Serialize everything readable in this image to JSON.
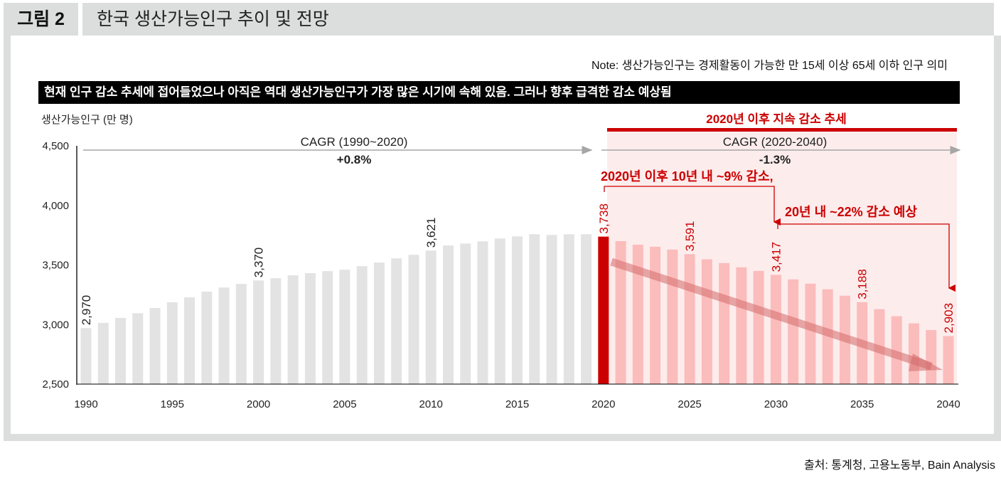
{
  "header": {
    "figure_label": "그림 2",
    "title": "한국 생산가능인구 추이 및 전망"
  },
  "note": "Note: 생산가능인구는 경제활동이 가능한 만 15세 이상 65세 이하 인구 의미",
  "banner": "현재 인구 감소 추세에 접어들었으나 아직은 역대 생산가능인구가 가장 많은 시기에 속해 있음. 그러나 향후 급격한 감소 예상됨",
  "source": "출처: 통계청, 고용노동부, Bain Analysis",
  "colors": {
    "historic": "#e3e3e3",
    "highlight": "#cc0000",
    "forecast": "#fbbcbc",
    "forecast_bg": "#fdecec",
    "annotation": "#cc0000"
  },
  "chart_data": {
    "type": "bar",
    "ylabel": "생산가능인구 (만 명)",
    "ylim": [
      2500,
      4500
    ],
    "yticks": [
      "2,500",
      "3,000",
      "3,500",
      "4,000",
      "4,500"
    ],
    "ytick_values": [
      2500,
      3000,
      3500,
      4000,
      4500
    ],
    "xticks": [
      "1990",
      "1995",
      "2000",
      "2005",
      "2010",
      "2015",
      "2020",
      "2025",
      "2030",
      "2035",
      "2040"
    ],
    "years": [
      1990,
      1991,
      1992,
      1993,
      1994,
      1995,
      1996,
      1997,
      1998,
      1999,
      2000,
      2001,
      2002,
      2003,
      2004,
      2005,
      2006,
      2007,
      2008,
      2009,
      2010,
      2011,
      2012,
      2013,
      2014,
      2015,
      2016,
      2017,
      2018,
      2019,
      2020,
      2021,
      2022,
      2023,
      2024,
      2025,
      2026,
      2027,
      2028,
      2029,
      2030,
      2031,
      2032,
      2033,
      2034,
      2035,
      2036,
      2037,
      2038,
      2039,
      2040
    ],
    "values": [
      2970,
      3014,
      3056,
      3095,
      3139,
      3187,
      3229,
      3276,
      3311,
      3341,
      3370,
      3389,
      3413,
      3431,
      3448,
      3460,
      3490,
      3520,
      3555,
      3585,
      3621,
      3663,
      3680,
      3698,
      3722,
      3740,
      3758,
      3752,
      3758,
      3758,
      3738,
      3700,
      3670,
      3653,
      3629,
      3591,
      3548,
      3516,
      3480,
      3450,
      3417,
      3379,
      3343,
      3296,
      3242,
      3188,
      3129,
      3070,
      3010,
      2954,
      2903
    ],
    "forecast_from": 2021,
    "data_labels": [
      {
        "year": 1990,
        "text": "2,970"
      },
      {
        "year": 2000,
        "text": "3,370"
      },
      {
        "year": 2010,
        "text": "3,621"
      },
      {
        "year": 2020,
        "text": "3,738"
      },
      {
        "year": 2025,
        "text": "3,591"
      },
      {
        "year": 2030,
        "text": "3,417"
      },
      {
        "year": 2035,
        "text": "3,188"
      },
      {
        "year": 2040,
        "text": "2,903"
      }
    ],
    "annotations": {
      "period_title": "2020년 이후 지속 감소 추세",
      "cagr1_label": "CAGR (1990~2020)",
      "cagr1_value": "+0.8%",
      "cagr2_label": "CAGR (2020-2040)",
      "cagr2_value": "-1.3%",
      "callout1": "2020년 이후 10년 내 ~9% 감소,",
      "callout2": "20년 내 ~22% 감소 예상"
    }
  }
}
